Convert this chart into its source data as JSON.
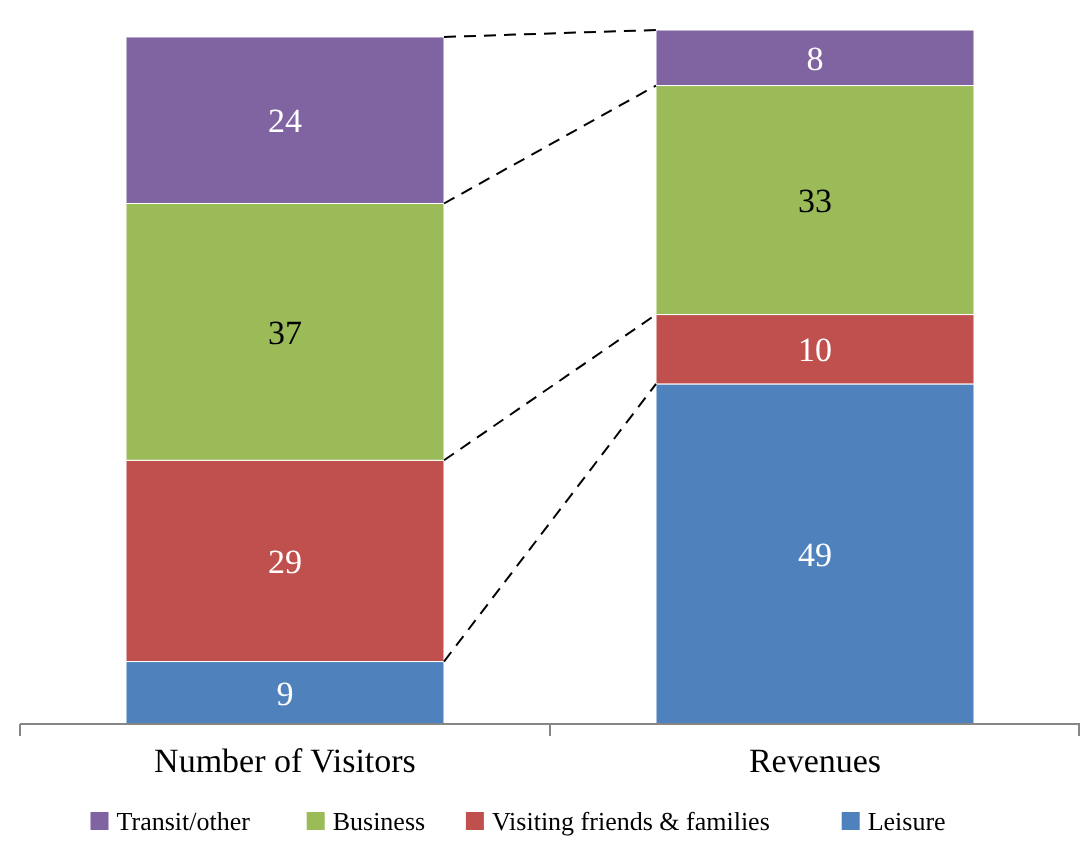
{
  "chart_data": {
    "type": "bar",
    "stacked": true,
    "data_labels": true,
    "legend": "bottom",
    "categories": [
      "Number of Visitors",
      "Revenues"
    ],
    "series": [
      {
        "name": "Leisure",
        "color": "#4f81bd",
        "values": [
          9,
          49
        ]
      },
      {
        "name": "Visiting friends & families",
        "color": "#c0504d",
        "values": [
          29,
          10
        ]
      },
      {
        "name": "Business",
        "color": "#9bbb59",
        "values": [
          37,
          33
        ]
      },
      {
        "name": "Transit/other",
        "color": "#8064a2",
        "values": [
          24,
          8
        ]
      }
    ]
  }
}
